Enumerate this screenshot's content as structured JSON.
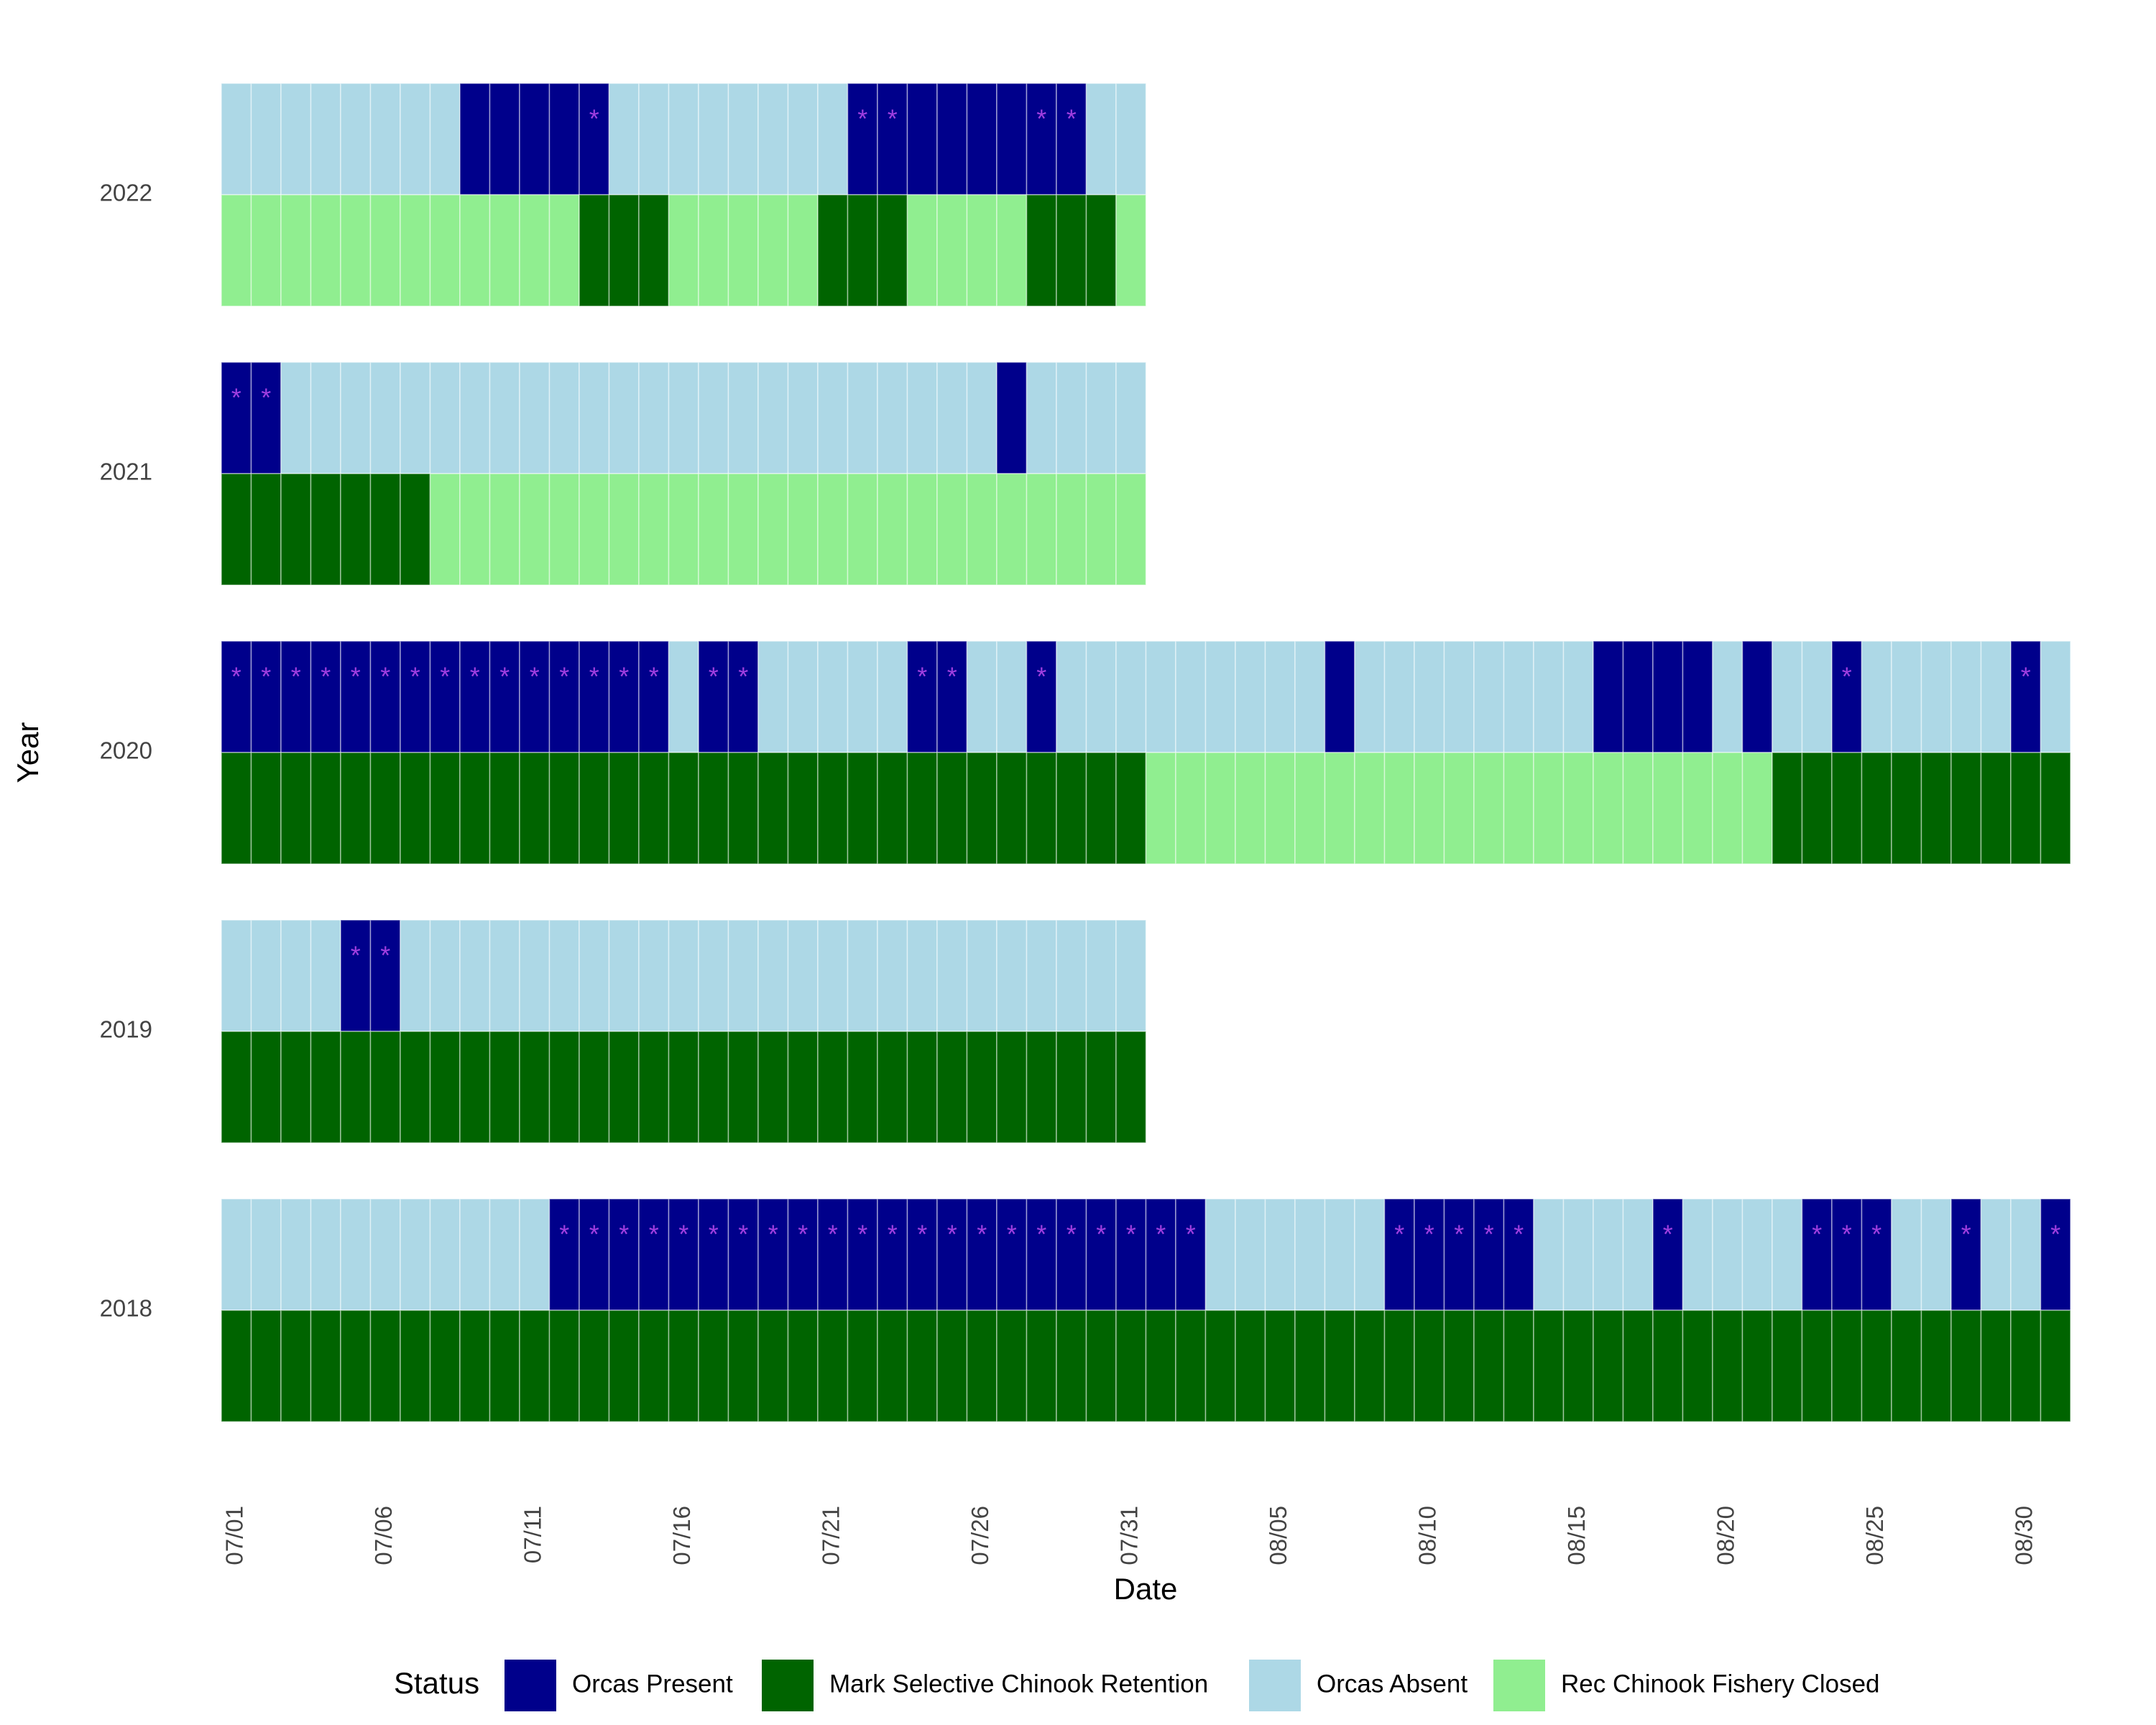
{
  "chart_data": {
    "type": "tile",
    "xlabel": "Date",
    "ylabel": "Year",
    "legend_title": "Status",
    "marker": "*",
    "marker_color": "#a13fe0",
    "legend": [
      {
        "name": "Orcas Present",
        "color": "#00008b"
      },
      {
        "name": "Mark Selective Chinook Retention",
        "color": "#006400"
      },
      {
        "name": "Orcas Absent",
        "color": "#add8e6"
      },
      {
        "name": "Rec Chinook Fishery Closed",
        "color": "#90ee90"
      }
    ],
    "categories": [
      "07/01",
      null,
      null,
      null,
      null,
      "07/06",
      null,
      null,
      null,
      null,
      "07/11",
      null,
      null,
      null,
      null,
      "07/16",
      null,
      null,
      null,
      null,
      "07/21",
      null,
      null,
      null,
      null,
      "07/26",
      null,
      null,
      null,
      null,
      "07/31",
      null,
      null,
      null,
      null,
      "08/05",
      null,
      null,
      null,
      null,
      "08/10",
      null,
      null,
      null,
      null,
      "08/15",
      null,
      null,
      null,
      null,
      "08/20",
      null,
      null,
      null,
      null,
      "08/25",
      null,
      null,
      null,
      null,
      "08/30",
      null
    ],
    "rows": [
      {
        "year": 2022,
        "orcas": [
          2,
          2,
          2,
          2,
          2,
          2,
          2,
          2,
          0,
          0,
          0,
          0,
          0,
          2,
          2,
          2,
          2,
          2,
          2,
          2,
          2,
          0,
          0,
          0,
          0,
          0,
          0,
          0,
          0,
          2,
          2
        ],
        "fishery": [
          3,
          3,
          3,
          3,
          3,
          3,
          3,
          3,
          3,
          3,
          3,
          3,
          1,
          1,
          1,
          3,
          3,
          3,
          3,
          3,
          1,
          1,
          1,
          3,
          3,
          3,
          3,
          1,
          1,
          1,
          3
        ],
        "starred": [
          0,
          0,
          0,
          0,
          0,
          0,
          0,
          0,
          0,
          0,
          0,
          0,
          1,
          0,
          0,
          0,
          0,
          0,
          0,
          0,
          0,
          1,
          1,
          0,
          0,
          0,
          0,
          1,
          1,
          0,
          0
        ]
      },
      {
        "year": 2021,
        "orcas": [
          0,
          0,
          2,
          2,
          2,
          2,
          2,
          2,
          2,
          2,
          2,
          2,
          2,
          2,
          2,
          2,
          2,
          2,
          2,
          2,
          2,
          2,
          2,
          2,
          2,
          2,
          0,
          2,
          2,
          2,
          2
        ],
        "fishery": [
          1,
          1,
          1,
          1,
          1,
          1,
          1,
          3,
          3,
          3,
          3,
          3,
          3,
          3,
          3,
          3,
          3,
          3,
          3,
          3,
          3,
          3,
          3,
          3,
          3,
          3,
          3,
          3,
          3,
          3,
          3
        ],
        "starred": [
          1,
          1,
          0,
          0,
          0,
          0,
          0,
          0,
          0,
          0,
          0,
          0,
          0,
          0,
          0,
          0,
          0,
          0,
          0,
          0,
          0,
          0,
          0,
          0,
          0,
          0,
          0,
          0,
          0,
          0,
          0
        ]
      },
      {
        "year": 2020,
        "orcas": [
          0,
          0,
          0,
          0,
          0,
          0,
          0,
          0,
          0,
          0,
          0,
          0,
          0,
          0,
          0,
          2,
          0,
          0,
          2,
          2,
          2,
          2,
          2,
          0,
          0,
          2,
          2,
          0,
          2,
          2,
          2,
          2,
          2,
          2,
          2,
          2,
          2,
          0,
          2,
          2,
          2,
          2,
          2,
          2,
          2,
          2,
          0,
          0,
          0,
          0,
          2,
          0,
          2,
          2,
          0,
          2,
          2,
          2,
          2,
          2,
          0,
          2
        ],
        "fishery": [
          1,
          1,
          1,
          1,
          1,
          1,
          1,
          1,
          1,
          1,
          1,
          1,
          1,
          1,
          1,
          1,
          1,
          1,
          1,
          1,
          1,
          1,
          1,
          1,
          1,
          1,
          1,
          1,
          1,
          1,
          1,
          3,
          3,
          3,
          3,
          3,
          3,
          3,
          3,
          3,
          3,
          3,
          3,
          3,
          3,
          3,
          3,
          3,
          3,
          3,
          3,
          3,
          1,
          1,
          1,
          1,
          1,
          1,
          1,
          1,
          1,
          1
        ],
        "starred": [
          1,
          1,
          1,
          1,
          1,
          1,
          1,
          1,
          1,
          1,
          1,
          1,
          1,
          1,
          1,
          0,
          1,
          1,
          0,
          0,
          0,
          0,
          0,
          1,
          1,
          0,
          0,
          1,
          0,
          0,
          0,
          0,
          0,
          0,
          0,
          0,
          0,
          0,
          0,
          0,
          0,
          0,
          0,
          0,
          0,
          0,
          0,
          0,
          0,
          0,
          0,
          0,
          0,
          0,
          1,
          0,
          0,
          0,
          0,
          0,
          1,
          0
        ]
      },
      {
        "year": 2019,
        "orcas": [
          2,
          2,
          2,
          2,
          0,
          0,
          2,
          2,
          2,
          2,
          2,
          2,
          2,
          2,
          2,
          2,
          2,
          2,
          2,
          2,
          2,
          2,
          2,
          2,
          2,
          2,
          2,
          2,
          2,
          2,
          2
        ],
        "fishery": [
          1,
          1,
          1,
          1,
          1,
          1,
          1,
          1,
          1,
          1,
          1,
          1,
          1,
          1,
          1,
          1,
          1,
          1,
          1,
          1,
          1,
          1,
          1,
          1,
          1,
          1,
          1,
          1,
          1,
          1,
          1
        ],
        "starred": [
          0,
          0,
          0,
          0,
          1,
          1,
          0,
          0,
          0,
          0,
          0,
          0,
          0,
          0,
          0,
          0,
          0,
          0,
          0,
          0,
          0,
          0,
          0,
          0,
          0,
          0,
          0,
          0,
          0,
          0,
          0
        ]
      },
      {
        "year": 2018,
        "orcas": [
          2,
          2,
          2,
          2,
          2,
          2,
          2,
          2,
          2,
          2,
          2,
          0,
          0,
          0,
          0,
          0,
          0,
          0,
          0,
          0,
          0,
          0,
          0,
          0,
          0,
          0,
          0,
          0,
          0,
          0,
          0,
          0,
          0,
          2,
          2,
          2,
          2,
          2,
          2,
          0,
          0,
          0,
          0,
          0,
          2,
          2,
          2,
          2,
          0,
          2,
          2,
          2,
          2,
          0,
          0,
          0,
          2,
          2,
          0,
          2,
          2,
          0
        ],
        "fishery": [
          1,
          1,
          1,
          1,
          1,
          1,
          1,
          1,
          1,
          1,
          1,
          1,
          1,
          1,
          1,
          1,
          1,
          1,
          1,
          1,
          1,
          1,
          1,
          1,
          1,
          1,
          1,
          1,
          1,
          1,
          1,
          1,
          1,
          1,
          1,
          1,
          1,
          1,
          1,
          1,
          1,
          1,
          1,
          1,
          1,
          1,
          1,
          1,
          1,
          1,
          1,
          1,
          1,
          1,
          1,
          1,
          1,
          1,
          1,
          1,
          1,
          1
        ],
        "starred": [
          0,
          0,
          0,
          0,
          0,
          0,
          0,
          0,
          0,
          0,
          0,
          1,
          1,
          1,
          1,
          1,
          1,
          1,
          1,
          1,
          1,
          1,
          1,
          1,
          1,
          1,
          1,
          1,
          1,
          1,
          1,
          1,
          1,
          0,
          0,
          0,
          0,
          0,
          0,
          1,
          1,
          1,
          1,
          1,
          0,
          0,
          0,
          0,
          1,
          0,
          0,
          0,
          0,
          1,
          1,
          1,
          0,
          0,
          1,
          0,
          0,
          1
        ]
      }
    ]
  }
}
